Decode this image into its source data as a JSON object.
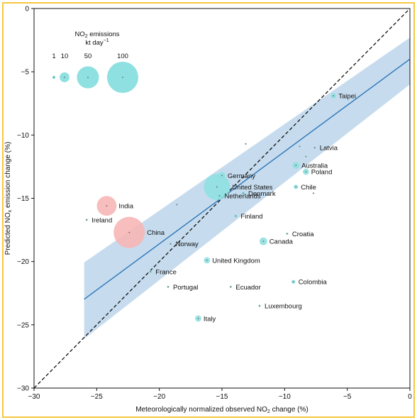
{
  "chart_data": {
    "type": "scatter",
    "xlabel": "Meteorologically normalized observed NO₂ change (%)",
    "xlabel_parts": [
      "Meteorologically normalized observed NO",
      "2",
      " change (%)"
    ],
    "ylabel": "Predicted NOₓ emission change (%)",
    "ylabel_parts": [
      "Predicted NO",
      "x",
      " emission change (%)"
    ],
    "xlim": [
      -30,
      0
    ],
    "ylim": [
      -30,
      0
    ],
    "xticks": [
      -30,
      -25,
      -20,
      -15,
      -10,
      -5,
      0
    ],
    "yticks": [
      -30,
      -25,
      -20,
      -15,
      -10,
      -5,
      0
    ],
    "xtick_labels": [
      "−30",
      "−25",
      "−20",
      "−15",
      "−10",
      "−5",
      "0"
    ],
    "ytick_labels": [
      "−30",
      "−25",
      "−20",
      "−15",
      "−10",
      "−5",
      "0"
    ],
    "grid": false,
    "identity_line": {
      "from": [
        -30,
        -30
      ],
      "to": [
        0,
        0
      ],
      "style": "dashed",
      "color": "#111111"
    },
    "fit_line": {
      "from": [
        -30,
        -25.9
      ],
      "to": [
        0,
        -4.0
      ],
      "color": "#2e75b6"
    },
    "confidence_band": {
      "upper": [
        [
          -30,
          -22.8
        ],
        [
          0,
          -2.3
        ]
      ],
      "lower": [
        [
          -30,
          -29.2
        ],
        [
          0,
          -6.0
        ]
      ],
      "color": "#c6dcee"
    },
    "legend": {
      "title_parts": [
        "NO",
        "2",
        " emissions"
      ],
      "units_parts": [
        "kt day",
        "−1"
      ],
      "entries": [
        {
          "label": "1",
          "size": 1
        },
        {
          "label": "10",
          "size": 10
        },
        {
          "label": "50",
          "size": 50
        },
        {
          "label": "100",
          "size": 100
        }
      ],
      "placement": "top-left"
    },
    "colors": {
      "developed": "#8fe0e0",
      "developing": "#f7b6b6"
    },
    "points": [
      {
        "label": "Taipei",
        "x": -6.1,
        "y": -6.9,
        "size": 3,
        "color": "#8fe0e0"
      },
      {
        "label": "Latvia",
        "x": -7.6,
        "y": -11.0,
        "size": 0.5,
        "color": "#8fe0e0"
      },
      {
        "label": "Australia",
        "x": -9.1,
        "y": -12.4,
        "size": 5,
        "color": "#8fe0e0"
      },
      {
        "label": "Poland",
        "x": -8.3,
        "y": -12.9,
        "size": 4,
        "color": "#8fe0e0"
      },
      {
        "label": "Chile",
        "x": -9.1,
        "y": -14.1,
        "size": 2,
        "color": "#8fe0e0"
      },
      {
        "label": "Germany",
        "x": -15.0,
        "y": -13.2,
        "size": 5,
        "color": "#8fe0e0"
      },
      {
        "label": "United States",
        "x": -15.4,
        "y": -14.1,
        "size": 70,
        "color": "#8fe0e0"
      },
      {
        "label": "Denmark",
        "x": -13.3,
        "y": -14.6,
        "size": 1,
        "color": "#8fe0e0"
      },
      {
        "label": "Netherlands",
        "x": -15.2,
        "y": -14.8,
        "size": 1.5,
        "color": "#8fe0e0"
      },
      {
        "label": "Finland",
        "x": -13.9,
        "y": -16.4,
        "size": 1,
        "color": "#8fe0e0"
      },
      {
        "label": "India",
        "x": -24.2,
        "y": -15.6,
        "size": 40,
        "color": "#f7b6b6"
      },
      {
        "label": "Ireland",
        "x": -25.8,
        "y": -16.7,
        "size": 0.5,
        "color": "#8fe0e0"
      },
      {
        "label": "China",
        "x": -22.4,
        "y": -17.7,
        "size": 100,
        "color": "#f7b6b6"
      },
      {
        "label": "Croatia",
        "x": -9.8,
        "y": -17.8,
        "size": 0.5,
        "color": "#8fe0e0"
      },
      {
        "label": "Canada",
        "x": -11.7,
        "y": -18.4,
        "size": 6,
        "color": "#8fe0e0"
      },
      {
        "label": "Norway",
        "x": -19.1,
        "y": -18.6,
        "size": 0.5,
        "color": "#8fe0e0"
      },
      {
        "label": "United Kingdom",
        "x": -16.2,
        "y": -19.9,
        "size": 4,
        "color": "#8fe0e0"
      },
      {
        "label": "France",
        "x": -20.7,
        "y": -20.8,
        "size": 1,
        "color": "#8fe0e0"
      },
      {
        "label": "Portugal",
        "x": -19.3,
        "y": -22.0,
        "size": 0.5,
        "color": "#8fe0e0"
      },
      {
        "label": "Ecuador",
        "x": -14.3,
        "y": -22.0,
        "size": 0.5,
        "color": "#8fe0e0"
      },
      {
        "label": "Colombia",
        "x": -9.3,
        "y": -21.6,
        "size": 1.5,
        "color": "#8fe0e0"
      },
      {
        "label": "Luxembourg",
        "x": -12.0,
        "y": -23.5,
        "size": 0.5,
        "color": "#8fe0e0"
      },
      {
        "label": "Italy",
        "x": -16.9,
        "y": -24.5,
        "size": 4,
        "color": "#8fe0e0"
      },
      {
        "label": "",
        "x": -13.1,
        "y": -10.7,
        "size": 0.3,
        "color": "#8fe0e0"
      },
      {
        "label": "",
        "x": -8.8,
        "y": -10.9,
        "size": 0.3,
        "color": "#8fe0e0"
      },
      {
        "label": "",
        "x": -8.3,
        "y": -11.7,
        "size": 0.3,
        "color": "#8fe0e0"
      },
      {
        "label": "",
        "x": -7.7,
        "y": -14.6,
        "size": 0.3,
        "color": "#8fe0e0"
      },
      {
        "label": "",
        "x": -18.6,
        "y": -15.5,
        "size": 0.3,
        "color": "#8fe0e0"
      }
    ]
  }
}
